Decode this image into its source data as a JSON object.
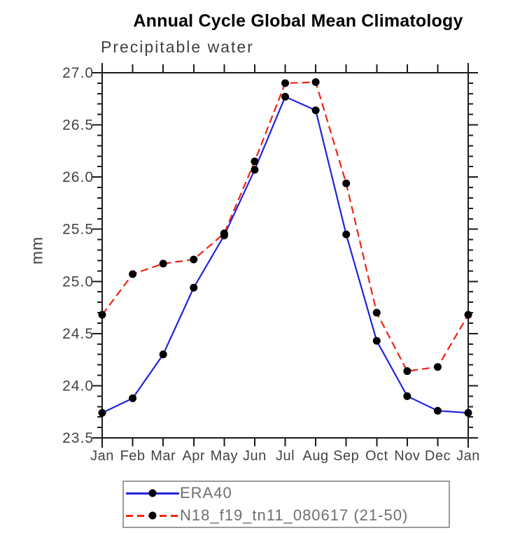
{
  "chart_data": {
    "type": "line",
    "title": "Annual Cycle Global Mean Climatology",
    "subtitle": "Precipitable water",
    "ylabel": "mm",
    "xlabel": "",
    "categories": [
      "Jan",
      "Feb",
      "Mar",
      "Apr",
      "May",
      "Jun",
      "Jul",
      "Aug",
      "Sep",
      "Oct",
      "Nov",
      "Dec",
      "Jan"
    ],
    "ylim": [
      23.5,
      27.0
    ],
    "ytick_step": 0.5,
    "ytick_minor_step": 0.1,
    "ytick_labels": [
      "23.5",
      "24.0",
      "24.5",
      "25.0",
      "25.5",
      "26.0",
      "26.5",
      "27.0"
    ],
    "grid": false,
    "legend_position": "bottom-left",
    "axis_color": "#1a1a1a",
    "tick_text_color": "#434343",
    "marker_color": "#000000",
    "series": [
      {
        "name": "ERA40",
        "color": "#2222dd",
        "style": "solid",
        "marker": "filled-circle",
        "values": [
          23.74,
          23.88,
          24.3,
          24.94,
          25.44,
          26.07,
          26.77,
          26.64,
          25.45,
          24.43,
          23.9,
          23.76,
          23.74
        ]
      },
      {
        "name": "N18_f19_tn11_080617 (21-50)",
        "color": "#ee2211",
        "style": "dashed",
        "marker": "filled-circle",
        "values": [
          24.68,
          25.07,
          25.17,
          25.21,
          25.46,
          26.15,
          26.9,
          26.91,
          25.94,
          24.7,
          24.14,
          24.18,
          24.68
        ]
      }
    ]
  }
}
